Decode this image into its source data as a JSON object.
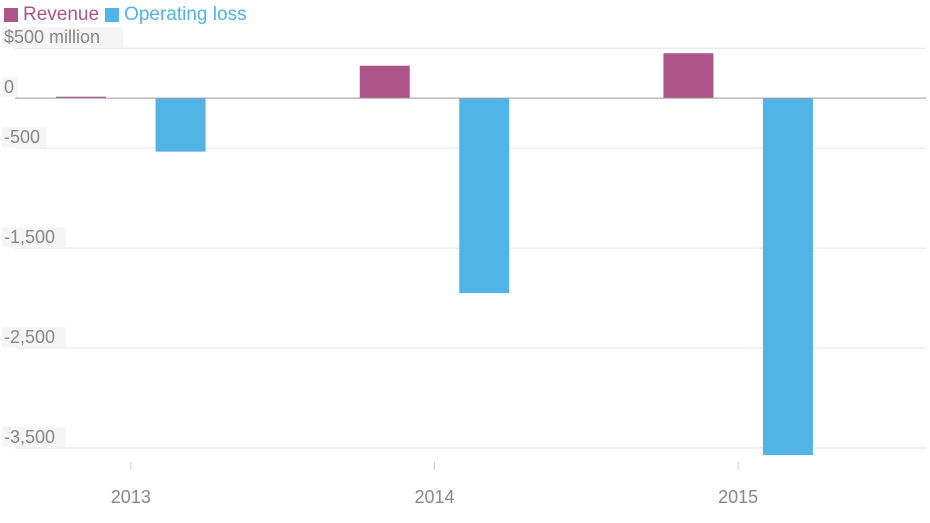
{
  "chart_data": {
    "type": "bar",
    "categories": [
      "2013",
      "2014",
      "2015"
    ],
    "series": [
      {
        "name": "Revenue",
        "color": "#ad5588",
        "values": [
          2,
          325,
          450
        ]
      },
      {
        "name": "Operating loss",
        "color": "#51b3e6",
        "values": [
          -535,
          -1950,
          -3570
        ]
      }
    ],
    "y_ticks": [
      {
        "value": 500,
        "label": "$500 million"
      },
      {
        "value": 0,
        "label": "0"
      },
      {
        "value": -500,
        "label": "-500"
      },
      {
        "value": -1500,
        "label": "-1,500"
      },
      {
        "value": -2500,
        "label": "-2,500"
      },
      {
        "value": -3500,
        "label": "-3,500"
      }
    ],
    "ylim": [
      -3650,
      520
    ],
    "grid": true,
    "legend_position": "top-left",
    "title": "",
    "xlabel": "",
    "ylabel": ""
  }
}
